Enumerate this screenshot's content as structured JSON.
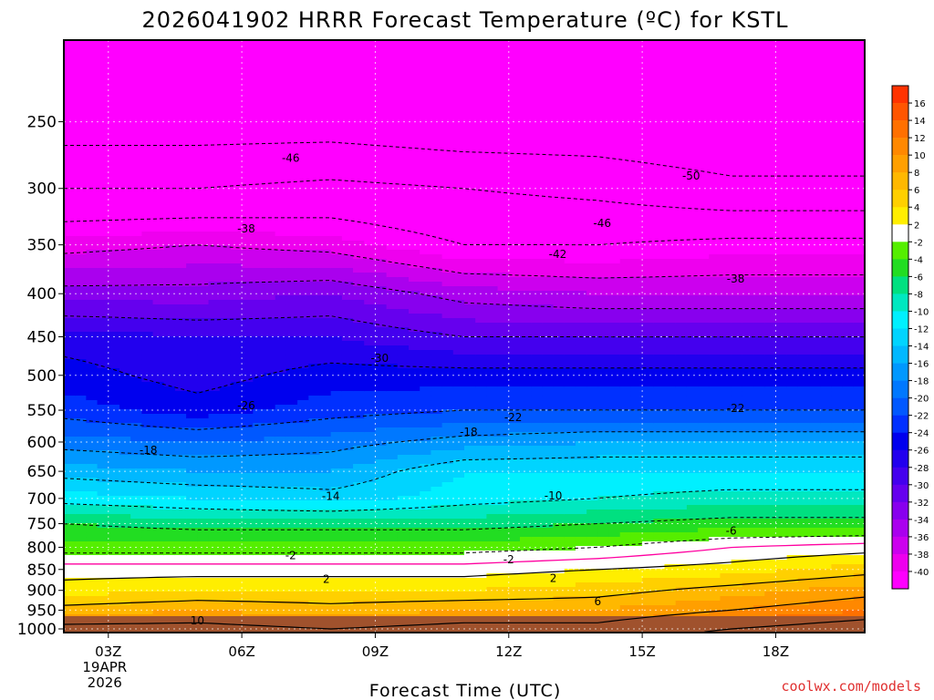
{
  "colors": {
    "surface": "#a0522d",
    "freezing_line": "#ff00a0",
    "credit": "#e03030"
  },
  "chart_data": {
    "type": "heatmap",
    "title": "2026041902 HRRR Forecast Temperature (ºC) for KSTL",
    "xlabel": "Forecast Time (UTC)",
    "ylabel": "",
    "credit": "coolwx.com/models",
    "x_ticks": [
      {
        "label": "03Z",
        "hour": 3,
        "sub1": "19APR",
        "sub2": "2026"
      },
      {
        "label": "06Z",
        "hour": 6,
        "sub1": "",
        "sub2": ""
      },
      {
        "label": "09Z",
        "hour": 9,
        "sub1": "",
        "sub2": ""
      },
      {
        "label": "12Z",
        "hour": 12,
        "sub1": "",
        "sub2": ""
      },
      {
        "label": "15Z",
        "hour": 15,
        "sub1": "",
        "sub2": ""
      },
      {
        "label": "18Z",
        "hour": 18,
        "sub1": "",
        "sub2": ""
      }
    ],
    "xlim": [
      2,
      20
    ],
    "y_ticks": [
      250,
      300,
      350,
      400,
      450,
      500,
      550,
      600,
      650,
      700,
      750,
      800,
      850,
      900,
      950,
      1000
    ],
    "ylim": [
      1010,
      200
    ],
    "y_scale": "log",
    "grid": true,
    "colorbar": {
      "labels": [
        "16",
        "14",
        "12",
        "10",
        "8",
        "6",
        "4",
        "2",
        "-2",
        "-4",
        "-6",
        "-8",
        "-10",
        "-12",
        "-14",
        "-16",
        "-18",
        "-20",
        "-22",
        "-24",
        "-26",
        "-28",
        "-30",
        "-32",
        "-34",
        "-36",
        "-38",
        "-40"
      ],
      "colors": [
        "#ff3300",
        "#ff5500",
        "#ff7000",
        "#ff8800",
        "#ff9f00",
        "#ffb800",
        "#ffd000",
        "#ffee00",
        "#ffffff",
        "#55ee00",
        "#22dd22",
        "#00e080",
        "#00e8c0",
        "#00f0ff",
        "#00d4ff",
        "#00b8ff",
        "#0098ff",
        "#0078ff",
        "#0058ff",
        "#0030ff",
        "#0000ee",
        "#2200ee",
        "#4400ee",
        "#6600ee",
        "#8800ee",
        "#aa00ee",
        "#cc00ee",
        "#ee00ee",
        "#ff00ff"
      ]
    },
    "temperature_profile": {
      "pressure": [
        250,
        300,
        350,
        400,
        450,
        500,
        550,
        600,
        650,
        700,
        750,
        800,
        850,
        900,
        950,
        1000
      ],
      "hours": [
        2,
        5,
        8,
        11,
        14,
        17,
        20
      ],
      "values": [
        [
          -52,
          -52,
          -52,
          -53,
          -53,
          -54,
          -54
        ],
        [
          -46,
          -46,
          -45,
          -46,
          -47,
          -49,
          -49
        ],
        [
          -39,
          -38,
          -39,
          -42,
          -42,
          -41,
          -41
        ],
        [
          -33,
          -33,
          -32,
          -35,
          -36,
          -36,
          -36
        ],
        [
          -27,
          -28,
          -28,
          -30,
          -30,
          -30,
          -30
        ],
        [
          -25,
          -27,
          -25,
          -25,
          -25,
          -25,
          -25
        ],
        [
          -23,
          -25,
          -23,
          -22,
          -22,
          -22,
          -22
        ],
        [
          -19,
          -20,
          -19,
          -17,
          -16,
          -16,
          -16
        ],
        [
          -15,
          -16,
          -16,
          -12,
          -12,
          -12,
          -12
        ],
        [
          -11,
          -12,
          -13,
          -11,
          -10,
          -9,
          -9
        ],
        [
          -6,
          -7,
          -7,
          -7,
          -6,
          -5,
          -5
        ],
        [
          -3,
          -3,
          -3,
          -3,
          -2,
          0,
          1
        ],
        [
          1,
          1,
          1,
          1,
          2,
          3,
          5
        ],
        [
          3,
          4,
          4,
          4,
          5,
          7,
          9
        ],
        [
          7,
          8,
          7,
          8,
          8,
          10,
          12
        ],
        [
          11,
          11,
          10,
          11,
          11,
          14,
          16
        ]
      ]
    },
    "contour_labels": [
      {
        "text": "-46",
        "x": 7.1,
        "p": 276
      },
      {
        "text": "-38",
        "x": 6.1,
        "p": 335
      },
      {
        "text": "-30",
        "x": 9.1,
        "p": 477
      },
      {
        "text": "-26",
        "x": 6.1,
        "p": 543
      },
      {
        "text": "-18",
        "x": 3.9,
        "p": 614
      },
      {
        "text": "-14",
        "x": 8.0,
        "p": 696
      },
      {
        "text": "-10",
        "x": 13.0,
        "p": 695
      },
      {
        "text": "-6",
        "x": 17.0,
        "p": 765
      },
      {
        "text": "-2",
        "x": 7.1,
        "p": 818
      },
      {
        "text": "-2",
        "x": 12.0,
        "p": 827
      },
      {
        "text": "2",
        "x": 7.9,
        "p": 873
      },
      {
        "text": "2",
        "x": 13.0,
        "p": 871
      },
      {
        "text": "6",
        "x": 14.0,
        "p": 928
      },
      {
        "text": "10",
        "x": 5.0,
        "p": 978
      },
      {
        "text": "-22",
        "x": 12.1,
        "p": 561
      },
      {
        "text": "-18",
        "x": 11.1,
        "p": 584
      },
      {
        "text": "-22",
        "x": 17.1,
        "p": 547
      },
      {
        "text": "-42",
        "x": 13.1,
        "p": 359
      },
      {
        "text": "-46",
        "x": 14.1,
        "p": 330
      },
      {
        "text": "-50",
        "x": 16.1,
        "p": 290
      },
      {
        "text": "-38",
        "x": 17.1,
        "p": 384
      }
    ]
  }
}
